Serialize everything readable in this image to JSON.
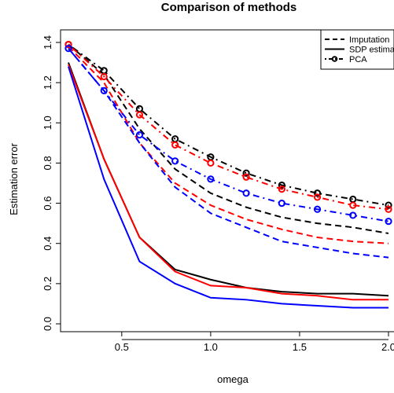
{
  "chart_data": {
    "type": "line",
    "title": "Comparison of methods",
    "xlabel": "omega",
    "ylabel": "Estimation error",
    "xlim": [
      0.2,
      2.0
    ],
    "ylim": [
      0.0,
      1.4
    ],
    "xticks": [
      "0.5",
      "1.0",
      "1.5",
      "2.0"
    ],
    "xtick_values": [
      0.5,
      1.0,
      1.5,
      2.0
    ],
    "yticks": [
      "0.0",
      "0.2",
      "0.4",
      "0.6",
      "0.8",
      "1.0",
      "1.2",
      "1.4"
    ],
    "ytick_values": [
      0.0,
      0.2,
      0.4,
      0.6,
      0.8,
      1.0,
      1.2,
      1.4
    ],
    "grid": false,
    "legend": {
      "placement": "top-right",
      "entries": [
        {
          "label": "Imputation",
          "style": "dashed"
        },
        {
          "label": "SDP estimato",
          "style": "solid"
        },
        {
          "label": "PCA",
          "style": "dotdash-circles"
        }
      ]
    },
    "x": [
      0.2,
      0.4,
      0.6,
      0.8,
      1.0,
      1.2,
      1.4,
      1.6,
      1.8,
      2.0
    ],
    "series": [
      {
        "method": "Imputation",
        "color": "#000000",
        "style": "dashed",
        "values": [
          1.39,
          1.24,
          0.97,
          0.77,
          0.65,
          0.58,
          0.53,
          0.5,
          0.48,
          0.45
        ]
      },
      {
        "method": "Imputation",
        "color": "#ff0000",
        "style": "dashed",
        "values": [
          1.38,
          1.2,
          0.9,
          0.7,
          0.59,
          0.52,
          0.47,
          0.43,
          0.41,
          0.4
        ]
      },
      {
        "method": "Imputation",
        "color": "#0000ff",
        "style": "dashed",
        "values": [
          1.37,
          1.16,
          0.9,
          0.68,
          0.55,
          0.48,
          0.41,
          0.38,
          0.35,
          0.33
        ]
      },
      {
        "method": "SDP estimator",
        "color": "#000000",
        "style": "solid",
        "values": [
          1.3,
          0.82,
          0.43,
          0.27,
          0.22,
          0.18,
          0.16,
          0.15,
          0.15,
          0.14
        ]
      },
      {
        "method": "SDP estimator",
        "color": "#ff0000",
        "style": "solid",
        "values": [
          1.29,
          0.82,
          0.43,
          0.26,
          0.19,
          0.18,
          0.15,
          0.14,
          0.12,
          0.12
        ]
      },
      {
        "method": "SDP estimator",
        "color": "#0000ff",
        "style": "solid",
        "values": [
          1.28,
          0.72,
          0.31,
          0.2,
          0.13,
          0.12,
          0.1,
          0.09,
          0.08,
          0.08
        ]
      },
      {
        "method": "PCA",
        "color": "#000000",
        "style": "dotdash-circles",
        "values": [
          1.39,
          1.26,
          1.07,
          0.92,
          0.83,
          0.75,
          0.69,
          0.65,
          0.62,
          0.59
        ]
      },
      {
        "method": "PCA",
        "color": "#ff0000",
        "style": "dotdash-circles",
        "values": [
          1.39,
          1.23,
          1.04,
          0.89,
          0.8,
          0.73,
          0.67,
          0.63,
          0.59,
          0.57
        ]
      },
      {
        "method": "PCA",
        "color": "#0000ff",
        "style": "dotdash-circles",
        "values": [
          1.37,
          1.16,
          0.94,
          0.81,
          0.72,
          0.65,
          0.6,
          0.57,
          0.54,
          0.51
        ]
      }
    ]
  }
}
